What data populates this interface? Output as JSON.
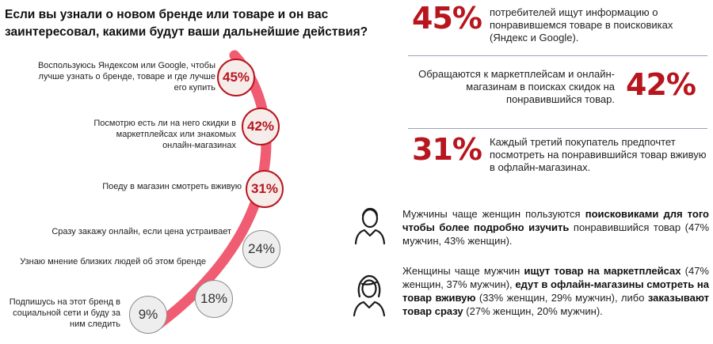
{
  "title": "Если вы узнали о новом бренде или товаре и он вас заинтересовал, какими будут ваши дальнейшие действия?",
  "chart_data": {
    "type": "bar",
    "title": "Если вы узнали о новом бренде или товаре и он вас заинтересовал, какими будут ваши дальнейшие действия?",
    "categories": [
      "Воспользуюсь Яндексом или Google, чтобы лучше узнать о бренде, товаре и где лучше его купить",
      "Посмотрю есть ли на него скидки в маркетплейсах или знакомых онлайн-магазинах",
      "Поеду в магазин смотреть вживую",
      "Сразу закажу онлайн, если цена устраивает",
      "Узнаю мнение близких людей об этом бренде",
      "Подпишусь на этот бренд в социальной сети и буду за ним следить"
    ],
    "values": [
      45,
      42,
      31,
      24,
      18,
      9
    ],
    "value_labels": [
      "45%",
      "42%",
      "31%",
      "24%",
      "18%",
      "9%"
    ],
    "highlighted": [
      true,
      true,
      true,
      false,
      false,
      false
    ],
    "colors": {
      "accent": "#b8161e",
      "arc": "#f05c72",
      "muted": "#8a8a8a"
    }
  },
  "stats": [
    {
      "value": "45%",
      "text": "потребителей ищут информацию о понравившемся товаре в поисковиках (Яндекс и Google)."
    },
    {
      "value": "42%",
      "text": "Обращаются к маркетплейсам и онлайн-магазинам в поисках скидок на понравившийся товар."
    },
    {
      "value": "31%",
      "text": "Каждый третий покупатель предпочтет посмотреть на понравившийся товар вживую в офлайн-магазинах."
    }
  ],
  "facts": {
    "men": {
      "icon": "man-icon",
      "p1": "Мужчины чаще женщин пользуются ",
      "b1": "поисковиками для того чтобы более подробно изучить",
      "p2": " понравившийся товар (47% мужчин, 43% женщин)."
    },
    "women": {
      "icon": "woman-icon",
      "p1": "Женщины чаще мужчин ",
      "b1": "ищут товар на маркетплейсах",
      "p2": " (47% женщин, 37% мужчин), ",
      "b2": "едут в офлайн-магазины смотреть на товар вживую",
      "p3": " (33% женщин, 29% мужчин), либо ",
      "b3": "заказывают товар сразу",
      "p4": " (27% женщин, 20% мужчин)."
    }
  }
}
